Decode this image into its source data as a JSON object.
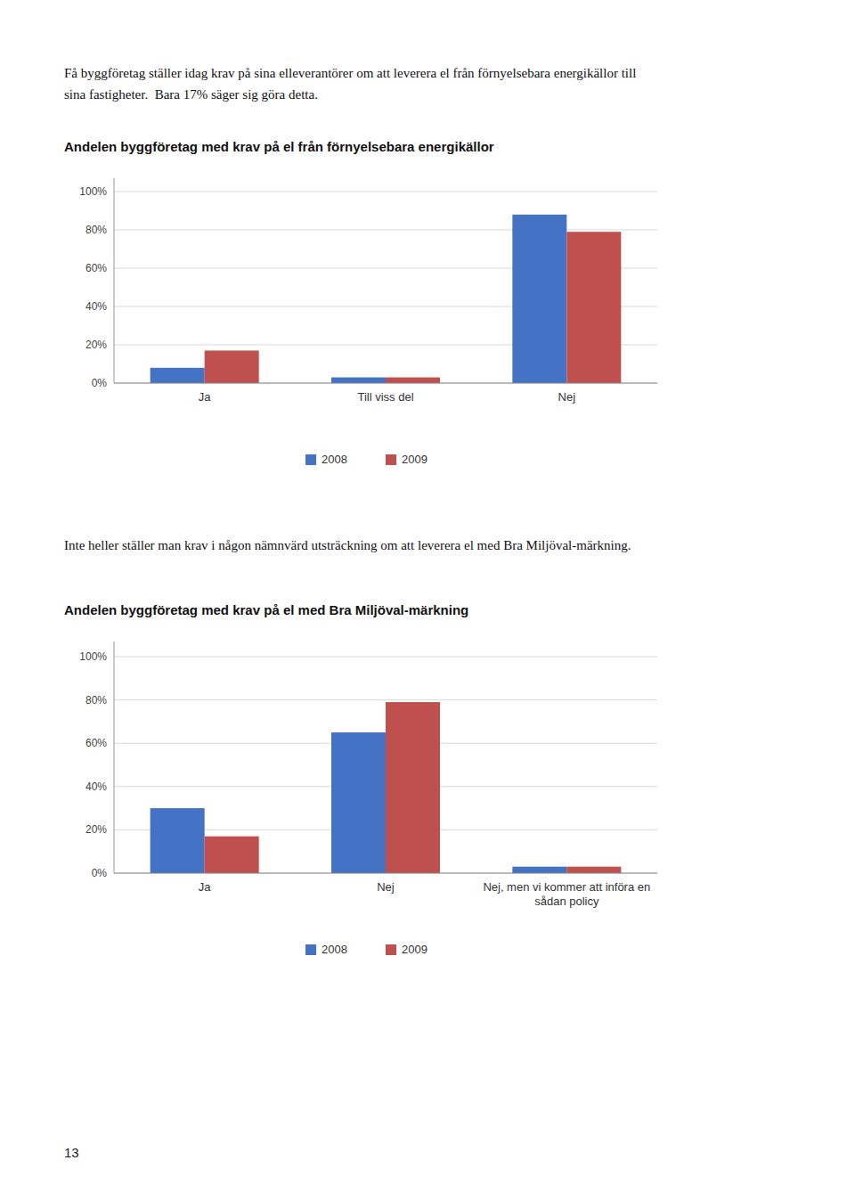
{
  "paragraphs": [
    "Få byggföretag ställer idag krav på sina elleverantörer om att leverera el från förnyelsebara energikällor till\nsina fastigheter.  Bara 17% säger sig göra detta.",
    "Inte heller ställer man krav i någon nämnvärd utsträckning om att leverera el med Bra Miljöval-märkning."
  ],
  "page_number": "13",
  "chart_data": [
    {
      "type": "bar",
      "title": "Andelen byggföretag med krav på el från förnyelsebara energikällor",
      "categories": [
        "Ja",
        "Till viss del",
        "Nej"
      ],
      "series": [
        {
          "name": "2008",
          "color": "#4472C4",
          "values": [
            8,
            3,
            88
          ]
        },
        {
          "name": "2009",
          "color": "#C0504D",
          "values": [
            17,
            3,
            79
          ]
        }
      ],
      "ylim": [
        0,
        107
      ],
      "yticks": [
        {
          "value": 0,
          "label": "0%"
        },
        {
          "value": 20,
          "label": "20%"
        },
        {
          "value": 40,
          "label": "40%"
        },
        {
          "value": 60,
          "label": "60%"
        },
        {
          "value": 80,
          "label": "80%"
        },
        {
          "value": 100,
          "label": "100%"
        }
      ],
      "grid": true,
      "legend": "bottom"
    },
    {
      "type": "bar",
      "title": "Andelen byggföretag med krav på el med Bra Miljöval-märkning",
      "categories": [
        "Ja",
        "Nej",
        "Nej, men vi kommer att införa en\nsådan policy"
      ],
      "series": [
        {
          "name": "2008",
          "color": "#4472C4",
          "values": [
            30,
            65,
            3
          ]
        },
        {
          "name": "2009",
          "color": "#C0504D",
          "values": [
            17,
            79,
            3
          ]
        }
      ],
      "ylim": [
        0,
        107
      ],
      "yticks": [
        {
          "value": 0,
          "label": "0%"
        },
        {
          "value": 20,
          "label": "20%"
        },
        {
          "value": 40,
          "label": "40%"
        },
        {
          "value": 60,
          "label": "60%"
        },
        {
          "value": 80,
          "label": "80%"
        },
        {
          "value": 100,
          "label": "100%"
        }
      ],
      "grid": true,
      "legend": "bottom"
    }
  ]
}
